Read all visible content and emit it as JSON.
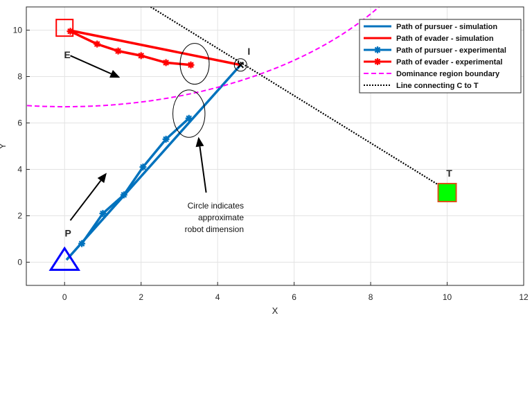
{
  "chart_data": {
    "type": "line",
    "title": "",
    "xlabel": "X",
    "ylabel": "Y",
    "xlim": [
      -1,
      12
    ],
    "ylim": [
      -1,
      11
    ],
    "xticks": [
      0,
      2,
      4,
      6,
      8,
      10,
      12
    ],
    "yticks": [
      0,
      2,
      4,
      6,
      8,
      10
    ],
    "grid": true,
    "legend_position": "top-right",
    "series": [
      {
        "name": "Path of pursuer - simulation",
        "color": "#0072BD",
        "style": "solid",
        "marker": "none",
        "points": [
          [
            0.05,
            0.1
          ],
          [
            4.6,
            8.5
          ]
        ]
      },
      {
        "name": "Path of evader - simulation",
        "color": "#FF0000",
        "style": "solid",
        "marker": "none",
        "points": [
          [
            0.1,
            10.0
          ],
          [
            4.6,
            8.5
          ]
        ]
      },
      {
        "name": "Path of pursuer - experimental",
        "color": "#0072BD",
        "style": "solid",
        "marker": "asterisk",
        "points": [
          [
            0.45,
            0.8
          ],
          [
            1.0,
            2.1
          ],
          [
            1.55,
            2.9
          ],
          [
            2.05,
            4.1
          ],
          [
            2.65,
            5.3
          ],
          [
            3.25,
            6.2
          ]
        ]
      },
      {
        "name": "Path of evader - experimental",
        "color": "#FF0000",
        "style": "solid",
        "marker": "asterisk",
        "points": [
          [
            0.15,
            9.95
          ],
          [
            0.85,
            9.4
          ],
          [
            1.4,
            9.1
          ],
          [
            2.0,
            8.9
          ],
          [
            2.65,
            8.6
          ],
          [
            3.3,
            8.5
          ]
        ]
      },
      {
        "name": "Dominance region boundary",
        "color": "#FF00FF",
        "style": "dashed",
        "marker": "none",
        "circle": {
          "cx": 0.0,
          "cy": 16.7,
          "r": 10.0
        }
      },
      {
        "name": "Line connecting C to T",
        "color": "#000000",
        "style": "dotted",
        "marker": "none",
        "points": [
          [
            2.25,
            11.0
          ],
          [
            9.9,
            3.2
          ]
        ]
      }
    ],
    "points_of_interest": [
      {
        "label": "P",
        "x": 0.0,
        "y": 0.0,
        "shape": "triangle",
        "color": "#0000FF"
      },
      {
        "label": "E",
        "x": 0.0,
        "y": 10.1,
        "shape": "square",
        "color": "#FF0000"
      },
      {
        "label": "T",
        "x": 10.0,
        "y": 3.0,
        "shape": "square-filled",
        "color": "#00FF00",
        "edge": "#D95319"
      },
      {
        "label": "I",
        "x": 4.6,
        "y": 8.5,
        "shape": "x-circle",
        "color": "#000000"
      }
    ],
    "robot_circles": [
      {
        "cx": 3.4,
        "cy": 8.55,
        "rx": 0.38,
        "ry": 0.88
      },
      {
        "cx": 3.25,
        "cy": 6.4,
        "rx": 0.42,
        "ry": 1.02
      }
    ],
    "arrows": [
      {
        "from": [
          0.15,
          8.9
        ],
        "to": [
          1.45,
          7.95
        ]
      },
      {
        "from": [
          0.15,
          1.8
        ],
        "to": [
          1.1,
          3.85
        ]
      },
      {
        "from": [
          3.7,
          3.0
        ],
        "to": [
          3.5,
          5.4
        ]
      }
    ],
    "annotation": {
      "lines": [
        "Circle indicates",
        "approximate",
        "robot dimension"
      ]
    }
  }
}
